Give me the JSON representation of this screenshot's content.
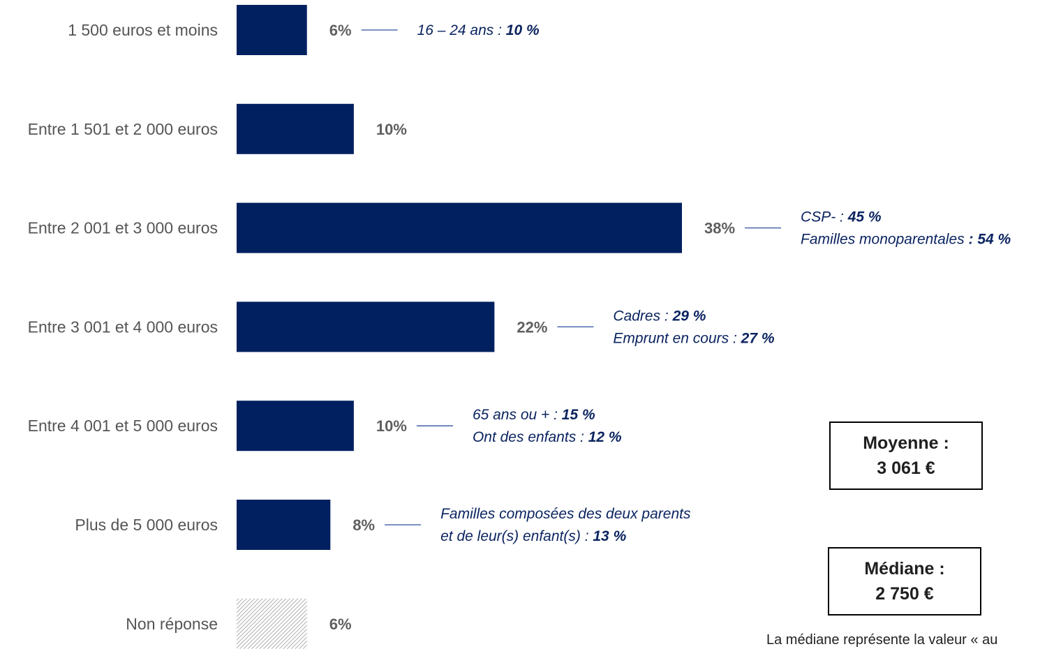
{
  "chart_data": {
    "type": "bar",
    "orientation": "horizontal",
    "categories": [
      "1 500 euros et moins",
      "Entre 1 501 et 2 000 euros",
      "Entre 2 001 et 3 000 euros",
      "Entre 3 001 et 4 000 euros",
      "Entre 4 001 et 5 000 euros",
      "Plus de 5 000 euros",
      "Non réponse"
    ],
    "values": [
      6,
      10,
      38,
      22,
      10,
      8,
      6
    ],
    "value_labels": [
      "6%",
      "10%",
      "38%",
      "22%",
      "10%",
      "8%",
      "6%"
    ],
    "bar_color": "#002060",
    "nonresponse_style": "hatched-gray",
    "annotations": [
      [
        {
          "text": "16 – 24 ans : ",
          "bold": "10 %"
        }
      ],
      [],
      [
        {
          "text": "CSP- : ",
          "bold": "45 %"
        },
        {
          "text": "Familles monoparentales ",
          "bold": ": 54 %"
        }
      ],
      [
        {
          "text": "Cadres : ",
          "bold": "29 %"
        },
        {
          "text": "Emprunt en cours : ",
          "bold": "27 %"
        }
      ],
      [
        {
          "text": "65 ans ou + : ",
          "bold": "15 %"
        },
        {
          "text": "Ont des enfants : ",
          "bold": "12 %"
        }
      ],
      [
        {
          "text": "Familles composées des deux parents",
          "bold": ""
        },
        {
          "text": "et de leur(s) enfant(s) : ",
          "bold": "13 %"
        }
      ],
      []
    ],
    "title": "",
    "xlabel": "",
    "ylabel": "",
    "xlim": [
      0,
      38
    ]
  },
  "stats": {
    "mean_label": "Moyenne :",
    "mean_value": "3 061 €",
    "median_label": "Médiane :",
    "median_value": "2 750 €"
  },
  "footnote": "La médiane représente la valeur « au"
}
